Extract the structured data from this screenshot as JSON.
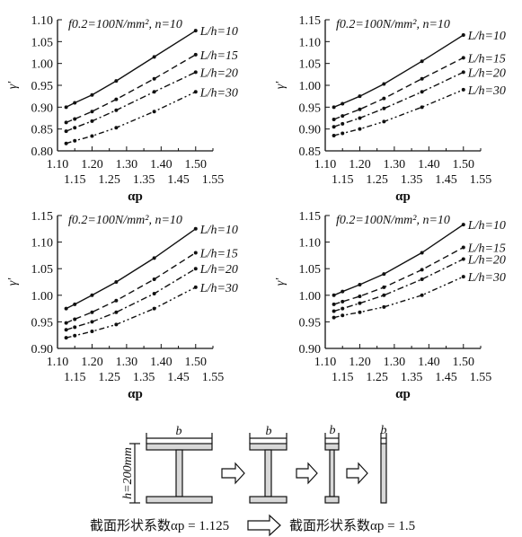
{
  "chart_data": [
    {
      "type": "line",
      "annotation": "f0.2=100N/mm², n=10",
      "ylabel": "γ'",
      "xlabel": "αp",
      "xlim": [
        1.1,
        1.55
      ],
      "ylim": [
        0.8,
        1.1
      ],
      "yticks": [
        "0.80",
        "0.85",
        "0.90",
        "0.95",
        "1.00",
        "1.05",
        "1.10"
      ],
      "x": [
        1.125,
        1.15,
        1.2,
        1.27,
        1.38,
        1.5
      ],
      "series": [
        {
          "name": "L/h=10",
          "style": "solid",
          "values": [
            0.9,
            0.91,
            0.928,
            0.96,
            1.015,
            1.075
          ]
        },
        {
          "name": "L/h=15",
          "style": "dashed",
          "values": [
            0.865,
            0.873,
            0.89,
            0.918,
            0.965,
            1.02
          ]
        },
        {
          "name": "L/h=20",
          "style": "dashdot",
          "values": [
            0.845,
            0.853,
            0.868,
            0.893,
            0.935,
            0.98
          ]
        },
        {
          "name": "L/h=30",
          "style": "dashdotdot",
          "values": [
            0.817,
            0.823,
            0.834,
            0.853,
            0.89,
            0.935
          ]
        }
      ]
    },
    {
      "type": "line",
      "annotation": "f0.2=100N/mm², n=10",
      "ylabel": "γ'",
      "xlabel": "αp",
      "xlim": [
        1.1,
        1.55
      ],
      "ylim": [
        0.85,
        1.15
      ],
      "yticks": [
        "0.85",
        "0.90",
        "0.95",
        "1.00",
        "1.05",
        "1.10",
        "1.15"
      ],
      "x": [
        1.125,
        1.15,
        1.2,
        1.27,
        1.38,
        1.5
      ],
      "series": [
        {
          "name": "L/h=10",
          "style": "solid",
          "values": [
            0.95,
            0.958,
            0.975,
            1.003,
            1.055,
            1.115
          ]
        },
        {
          "name": "L/h=15",
          "style": "dashed",
          "values": [
            0.922,
            0.93,
            0.945,
            0.97,
            1.015,
            1.063
          ]
        },
        {
          "name": "L/h=20",
          "style": "dashdot",
          "values": [
            0.905,
            0.912,
            0.925,
            0.947,
            0.985,
            1.03
          ]
        },
        {
          "name": "L/h=30",
          "style": "dashdotdot",
          "values": [
            0.885,
            0.89,
            0.9,
            0.917,
            0.95,
            0.99
          ]
        }
      ]
    },
    {
      "type": "line",
      "annotation": "f0.2=100N/mm², n=10",
      "ylabel": "γ'",
      "xlabel": "αp",
      "xlim": [
        1.1,
        1.55
      ],
      "ylim": [
        0.9,
        1.15
      ],
      "yticks": [
        "0.90",
        "0.95",
        "1.00",
        "1.05",
        "1.10",
        "1.15"
      ],
      "x": [
        1.125,
        1.15,
        1.2,
        1.27,
        1.38,
        1.5
      ],
      "series": [
        {
          "name": "L/h=10",
          "style": "solid",
          "values": [
            0.975,
            0.983,
            1.0,
            1.025,
            1.07,
            1.125
          ]
        },
        {
          "name": "L/h=15",
          "style": "dashed",
          "values": [
            0.948,
            0.955,
            0.968,
            0.99,
            1.03,
            1.08
          ]
        },
        {
          "name": "L/h=20",
          "style": "dashdot",
          "values": [
            0.935,
            0.94,
            0.95,
            0.968,
            1.003,
            1.05
          ]
        },
        {
          "name": "L/h=30",
          "style": "dashdotdot",
          "values": [
            0.92,
            0.924,
            0.932,
            0.945,
            0.975,
            1.015
          ]
        }
      ]
    },
    {
      "type": "line",
      "annotation": "f0.2=100N/mm², n=10",
      "ylabel": "γ'",
      "xlabel": "αp",
      "xlim": [
        1.1,
        1.55
      ],
      "ylim": [
        0.9,
        1.15
      ],
      "yticks": [
        "0.90",
        "0.95",
        "1.00",
        "1.05",
        "1.10",
        "1.15"
      ],
      "x": [
        1.125,
        1.15,
        1.2,
        1.27,
        1.38,
        1.5
      ],
      "series": [
        {
          "name": "L/h=10",
          "style": "solid",
          "values": [
            1.0,
            1.007,
            1.02,
            1.04,
            1.08,
            1.133
          ]
        },
        {
          "name": "L/h=15",
          "style": "dashed",
          "values": [
            0.983,
            0.988,
            0.998,
            1.015,
            1.048,
            1.09
          ]
        },
        {
          "name": "L/h=20",
          "style": "dashdot",
          "values": [
            0.97,
            0.975,
            0.985,
            1.0,
            1.03,
            1.068
          ]
        },
        {
          "name": "L/h=30",
          "style": "dashdotdot",
          "values": [
            0.958,
            0.962,
            0.968,
            0.978,
            1.0,
            1.035
          ]
        }
      ]
    }
  ],
  "xticks_top": [
    "1.10",
    "1.20",
    "1.30",
    "1.40",
    "1.50"
  ],
  "xticks_bottom": [
    "1.15",
    "1.25",
    "1.35",
    "1.45",
    "1.55"
  ],
  "section_diagram": {
    "dim_b": "b",
    "dim_h": "h=200mm",
    "caption_left": "截面形状系数αp = 1.125",
    "caption_right": "截面形状系数αp = 1.5"
  }
}
